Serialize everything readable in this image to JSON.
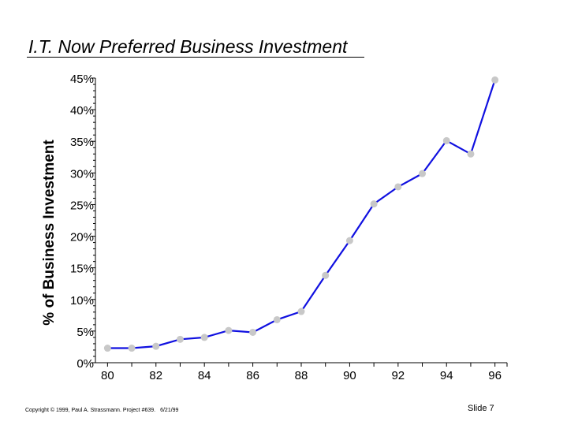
{
  "slide": {
    "title": "I.T. Now Preferred Business Investment",
    "copyright": "Copyright © 1999,  Paul A. Strassmann. Project #639.",
    "date": "6/21/99",
    "slide_number": "Slide 7"
  },
  "chart_data": {
    "type": "line",
    "title": "I.T. Now Preferred Business Investment",
    "xlabel": "",
    "ylabel": "% of Business Investment",
    "x": [
      80,
      81,
      82,
      83,
      84,
      85,
      86,
      87,
      88,
      89,
      90,
      91,
      92,
      93,
      94,
      95,
      96
    ],
    "x_tick_labels": [
      "80",
      "82",
      "84",
      "86",
      "88",
      "90",
      "92",
      "94",
      "96"
    ],
    "y_tick_labels": [
      "0%",
      "5%",
      "10%",
      "15%",
      "20%",
      "25%",
      "30%",
      "35%",
      "40%",
      "45%"
    ],
    "ylim": [
      0,
      45
    ],
    "xlim": [
      79.5,
      96.5
    ],
    "series": [
      {
        "values": [
          2.3,
          2.3,
          2.6,
          3.7,
          4.0,
          5.1,
          4.8,
          6.8,
          8.1,
          13.8,
          19.3,
          25.1,
          27.8,
          29.9,
          35.1,
          33.0,
          44.7
        ],
        "line_color": "#1010e0",
        "marker_color": "#c8c8c8"
      }
    ],
    "grid": false,
    "legend": "none"
  }
}
